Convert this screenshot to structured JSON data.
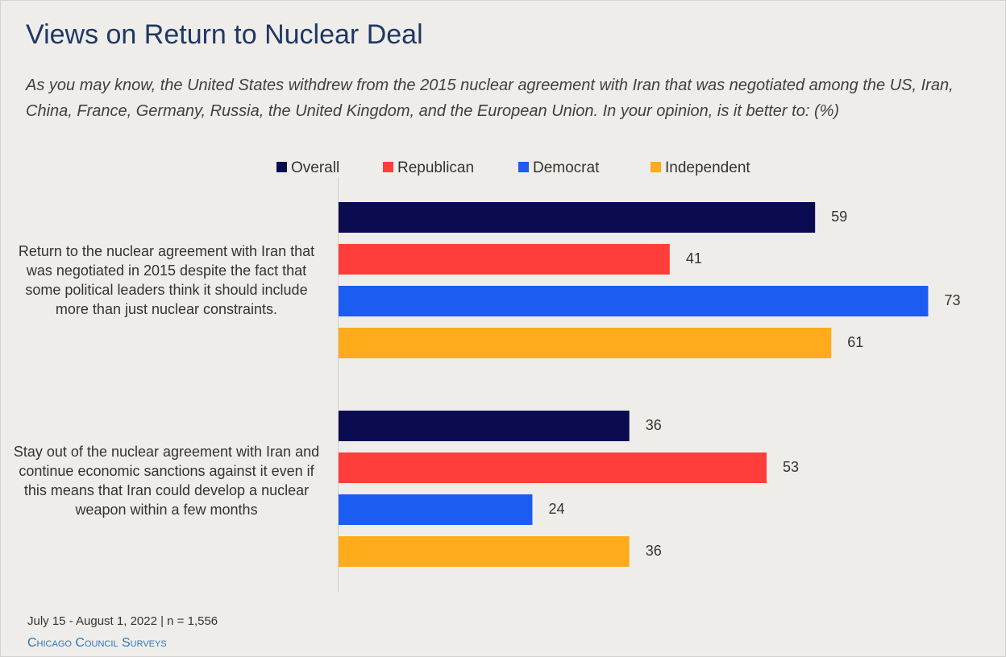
{
  "chart_data": {
    "type": "bar",
    "orientation": "horizontal",
    "title": "Views on Return to Nuclear Deal",
    "subtitle": "As you may know, the United States withdrew from the 2015 nuclear agreement with Iran that was negotiated among the US, Iran, China, France, Germany, Russia, the United Kingdom, and the European Union. In your opinion, is it better to: (%)",
    "categories": [
      "Return to the nuclear agreement with Iran that was negotiated in 2015 despite the fact that some political leaders think it should include more than just nuclear constraints.",
      "Stay out of the nuclear agreement with Iran and continue economic sanctions against it even if this means that Iran could develop a nuclear weapon within a few months"
    ],
    "series": [
      {
        "name": "Overall",
        "color": "#0b0b52",
        "values": [
          59,
          36
        ]
      },
      {
        "name": "Republican",
        "color": "#ff3d3a",
        "values": [
          41,
          53
        ]
      },
      {
        "name": "Democrat",
        "color": "#1c5cf0",
        "values": [
          73,
          24
        ]
      },
      {
        "name": "Independent",
        "color": "#ffab1c",
        "values": [
          61,
          36
        ]
      }
    ],
    "note": "July 15 - August 1, 2022 | n = 1,556",
    "source": "Chicago Council Surveys"
  }
}
